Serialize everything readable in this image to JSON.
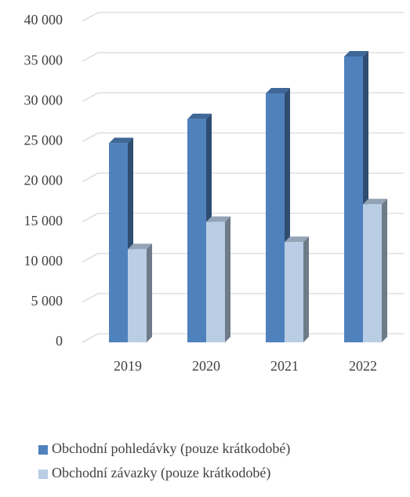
{
  "chart_data": {
    "type": "bar3d",
    "categories": [
      "2019",
      "2020",
      "2021",
      "2022"
    ],
    "series": [
      {
        "name": "Obchodní pohledávky (pouze krátkodobé)",
        "color": "#4f81bd",
        "values": [
          24800,
          27800,
          31000,
          35600
        ]
      },
      {
        "name": "Obchodní závazky (pouze krátkodobé)",
        "color": "#b9cde5",
        "values": [
          11600,
          15000,
          12500,
          17200
        ]
      }
    ],
    "ylim": [
      0,
      40000
    ],
    "yticks": [
      0,
      {
        "value": 5000,
        "label": "5 000"
      },
      {
        "value": 10000,
        "label": "10 000"
      },
      {
        "value": 15000,
        "label": "15 000"
      },
      {
        "value": 20000,
        "label": "20 000"
      },
      {
        "value": 25000,
        "label": "25 000"
      },
      {
        "value": 30000,
        "label": "30 000"
      },
      {
        "value": 35000,
        "label": "35 000"
      },
      {
        "value": 40000,
        "label": "40 000"
      }
    ],
    "grid": true,
    "legend": "bottom"
  }
}
